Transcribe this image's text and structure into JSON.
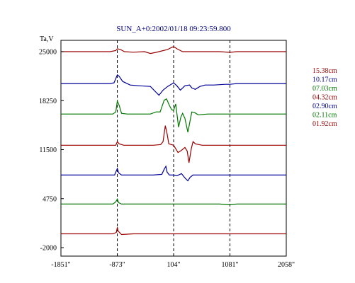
{
  "chart_data": {
    "type": "line",
    "title": "SUN_A+0:2002/01/18 09:23:59.800",
    "ylabel": "Ta,V",
    "xlabel": "",
    "x_ticks": [
      "-1851\"",
      "-873\"",
      "104\"",
      "1081\"",
      "2058\""
    ],
    "x_tick_values": [
      -1851,
      -873,
      104,
      1081,
      2058
    ],
    "y_ticks": [
      "25000",
      "18250",
      "11500",
      "4750",
      "-2000"
    ],
    "y_tick_values": [
      25000,
      18250,
      11500,
      4750,
      -2000
    ],
    "xlim": [
      -1851,
      2058
    ],
    "ylim": [
      -2000,
      27800
    ],
    "grid": false,
    "vlines": [
      -873,
      104,
      1081
    ],
    "legend_position": "right",
    "series": [
      {
        "name": "15.38cm",
        "color": "#990000",
        "offset": 25000,
        "points": [
          [
            -1851,
            0
          ],
          [
            -1400,
            0
          ],
          [
            -1000,
            0
          ],
          [
            -900,
            150
          ],
          [
            -873,
            400
          ],
          [
            -820,
            300
          ],
          [
            -750,
            0
          ],
          [
            -600,
            -80
          ],
          [
            -400,
            0
          ],
          [
            -300,
            -250
          ],
          [
            -200,
            -100
          ],
          [
            0,
            300
          ],
          [
            60,
            550
          ],
          [
            104,
            700
          ],
          [
            160,
            400
          ],
          [
            260,
            0
          ],
          [
            400,
            0
          ],
          [
            600,
            0
          ],
          [
            900,
            0
          ],
          [
            1081,
            -100
          ],
          [
            1200,
            0
          ],
          [
            1600,
            0
          ],
          [
            2058,
            0
          ]
        ]
      },
      {
        "name": "10.17cm",
        "color": "#000099",
        "offset": 20600,
        "points": [
          [
            -1851,
            0
          ],
          [
            -1400,
            0
          ],
          [
            -1000,
            0
          ],
          [
            -930,
            100
          ],
          [
            -873,
            1200
          ],
          [
            -840,
            1000
          ],
          [
            -780,
            300
          ],
          [
            -650,
            -200
          ],
          [
            -500,
            -300
          ],
          [
            -300,
            -400
          ],
          [
            -200,
            -1200
          ],
          [
            -150,
            -1600
          ],
          [
            -80,
            -900
          ],
          [
            0,
            -400
          ],
          [
            104,
            100
          ],
          [
            160,
            -300
          ],
          [
            220,
            -900
          ],
          [
            300,
            -300
          ],
          [
            380,
            -200
          ],
          [
            420,
            -600
          ],
          [
            480,
            -800
          ],
          [
            560,
            -400
          ],
          [
            650,
            -200
          ],
          [
            800,
            -200
          ],
          [
            1000,
            -100
          ],
          [
            1081,
            -100
          ],
          [
            1200,
            0
          ],
          [
            1600,
            0
          ],
          [
            2058,
            0
          ]
        ]
      },
      {
        "name": "07.03cm",
        "color": "#007700",
        "offset": 16400,
        "points": [
          [
            -1851,
            0
          ],
          [
            -1400,
            0
          ],
          [
            -950,
            0
          ],
          [
            -900,
            300
          ],
          [
            -873,
            1800
          ],
          [
            -840,
            1200
          ],
          [
            -800,
            100
          ],
          [
            -700,
            0
          ],
          [
            -500,
            0
          ],
          [
            -300,
            0
          ],
          [
            -200,
            300
          ],
          [
            -130,
            300
          ],
          [
            -60,
            1900
          ],
          [
            -20,
            2100
          ],
          [
            30,
            1200
          ],
          [
            70,
            600
          ],
          [
            104,
            500
          ],
          [
            140,
            1400
          ],
          [
            190,
            -1800
          ],
          [
            230,
            -400
          ],
          [
            260,
            100
          ],
          [
            300,
            -600
          ],
          [
            350,
            -2500
          ],
          [
            390,
            -900
          ],
          [
            420,
            300
          ],
          [
            470,
            200
          ],
          [
            530,
            -100
          ],
          [
            700,
            0
          ],
          [
            900,
            0
          ],
          [
            1081,
            0
          ],
          [
            1300,
            0
          ],
          [
            1600,
            0
          ],
          [
            2058,
            0
          ]
        ]
      },
      {
        "name": "04.32cm",
        "color": "#990000",
        "offset": 12100,
        "points": [
          [
            -1851,
            0
          ],
          [
            -1400,
            0
          ],
          [
            -900,
            0
          ],
          [
            -873,
            500
          ],
          [
            -840,
            200
          ],
          [
            -760,
            0
          ],
          [
            -500,
            0
          ],
          [
            -250,
            0
          ],
          [
            -120,
            100
          ],
          [
            -80,
            500
          ],
          [
            -40,
            2700
          ],
          [
            -10,
            1600
          ],
          [
            20,
            200
          ],
          [
            104,
            0
          ],
          [
            180,
            -1000
          ],
          [
            240,
            -700
          ],
          [
            300,
            -300
          ],
          [
            340,
            -800
          ],
          [
            370,
            -2400
          ],
          [
            410,
            -500
          ],
          [
            440,
            500
          ],
          [
            480,
            200
          ],
          [
            600,
            0
          ],
          [
            900,
            0
          ],
          [
            1081,
            0
          ],
          [
            1500,
            0
          ],
          [
            2058,
            0
          ]
        ]
      },
      {
        "name": "02.90cm",
        "color": "#000099",
        "offset": 8000,
        "points": [
          [
            -1851,
            0
          ],
          [
            -1300,
            0
          ],
          [
            -920,
            0
          ],
          [
            -873,
            900
          ],
          [
            -850,
            300
          ],
          [
            -800,
            0
          ],
          [
            -500,
            0
          ],
          [
            -250,
            0
          ],
          [
            -100,
            100
          ],
          [
            -60,
            800
          ],
          [
            -30,
            1200
          ],
          [
            -10,
            400
          ],
          [
            30,
            0
          ],
          [
            104,
            0
          ],
          [
            160,
            -100
          ],
          [
            240,
            200
          ],
          [
            300,
            -400
          ],
          [
            350,
            -800
          ],
          [
            390,
            -300
          ],
          [
            440,
            0
          ],
          [
            600,
            0
          ],
          [
            900,
            0
          ],
          [
            1081,
            0
          ],
          [
            1500,
            0
          ],
          [
            2058,
            0
          ]
        ]
      },
      {
        "name": "02.11cm",
        "color": "#007700",
        "offset": 4000,
        "points": [
          [
            -1851,
            0
          ],
          [
            -1300,
            0
          ],
          [
            -950,
            0
          ],
          [
            -900,
            300
          ],
          [
            -873,
            700
          ],
          [
            -850,
            200
          ],
          [
            -800,
            0
          ],
          [
            -500,
            0
          ],
          [
            -200,
            0
          ],
          [
            0,
            0
          ],
          [
            104,
            0
          ],
          [
            300,
            0
          ],
          [
            600,
            0
          ],
          [
            900,
            0
          ],
          [
            1081,
            -100
          ],
          [
            1200,
            0
          ],
          [
            1600,
            0
          ],
          [
            2058,
            0
          ]
        ]
      },
      {
        "name": "01.92cm",
        "color": "#990000",
        "offset": -100,
        "points": [
          [
            -1851,
            0
          ],
          [
            -1300,
            0
          ],
          [
            -950,
            0
          ],
          [
            -890,
            200
          ],
          [
            -873,
            900
          ],
          [
            -860,
            400
          ],
          [
            -800,
            -100
          ],
          [
            -600,
            0
          ],
          [
            -300,
            0
          ],
          [
            0,
            0
          ],
          [
            104,
            0
          ],
          [
            400,
            0
          ],
          [
            800,
            0
          ],
          [
            1081,
            0
          ],
          [
            1500,
            0
          ],
          [
            2058,
            0
          ]
        ]
      }
    ]
  }
}
